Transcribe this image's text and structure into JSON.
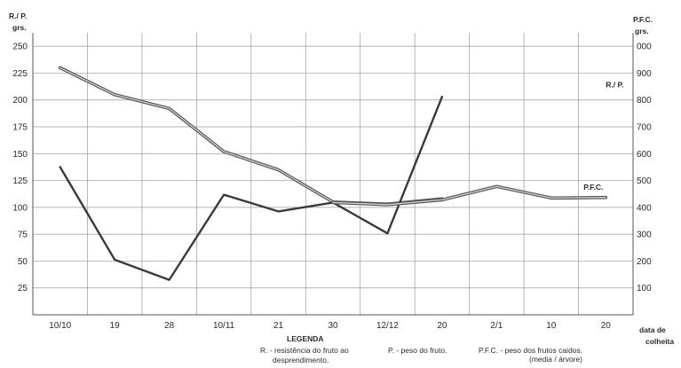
{
  "chart_data": {
    "type": "line",
    "left_axis_title_1": "R./ P.",
    "left_axis_title_2": "grs.",
    "right_axis_title_1": "P.F.C.",
    "right_axis_title_2": "grs.",
    "x_axis_title_1": "data de",
    "x_axis_title_2": "colheita",
    "categories": [
      "10/10",
      "19",
      "28",
      "10/11",
      "21",
      "30",
      "12/12",
      "20",
      "2/1",
      "10",
      "20"
    ],
    "left_ticks": [
      "250",
      "225",
      "200",
      "175",
      "150",
      "125",
      "100",
      "75",
      "50",
      "25"
    ],
    "right_ticks": [
      "000",
      "900",
      "800",
      "700",
      "600",
      "500",
      "400",
      "300",
      "200",
      "100"
    ],
    "ylim_left": [
      0,
      262.5
    ],
    "ylim_right": [
      0,
      1050
    ],
    "grid": true,
    "series": [
      {
        "name": "R./P.",
        "axis": "left",
        "style": "double",
        "values": [
          230,
          205,
          192,
          152,
          135,
          105,
          103,
          108,
          null,
          null,
          null
        ]
      },
      {
        "name": "R./P.",
        "axis": "left",
        "style": "single",
        "values": [
          null,
          null,
          null,
          null,
          null,
          null,
          76,
          203,
          null,
          null,
          null
        ]
      },
      {
        "name": "P.F.C.",
        "axis": "right",
        "style": "single",
        "values": [
          550,
          205,
          130,
          447,
          385,
          418,
          303,
          null,
          null,
          null,
          null
        ]
      },
      {
        "name": "P.F.C.",
        "axis": "right",
        "style": "double",
        "values": [
          null,
          null,
          null,
          null,
          null,
          418,
          410,
          428,
          478,
          435,
          437
        ]
      }
    ],
    "annotations": [
      {
        "text": "R./ P.",
        "x": "20",
        "y": 210,
        "axis": "left"
      },
      {
        "text": "P.F.C.",
        "x": "20",
        "y": 465,
        "axis": "right"
      }
    ],
    "legend_title": "LEGENDA",
    "legend": [
      {
        "lines": [
          "R. - resistência do fruto ao",
          "desprendimento."
        ]
      },
      {
        "lines": [
          "P. - peso do fruto."
        ]
      },
      {
        "lines": [
          "P.F.C. - peso dos frutos caidos.",
          "(media / árvore)"
        ]
      }
    ]
  }
}
